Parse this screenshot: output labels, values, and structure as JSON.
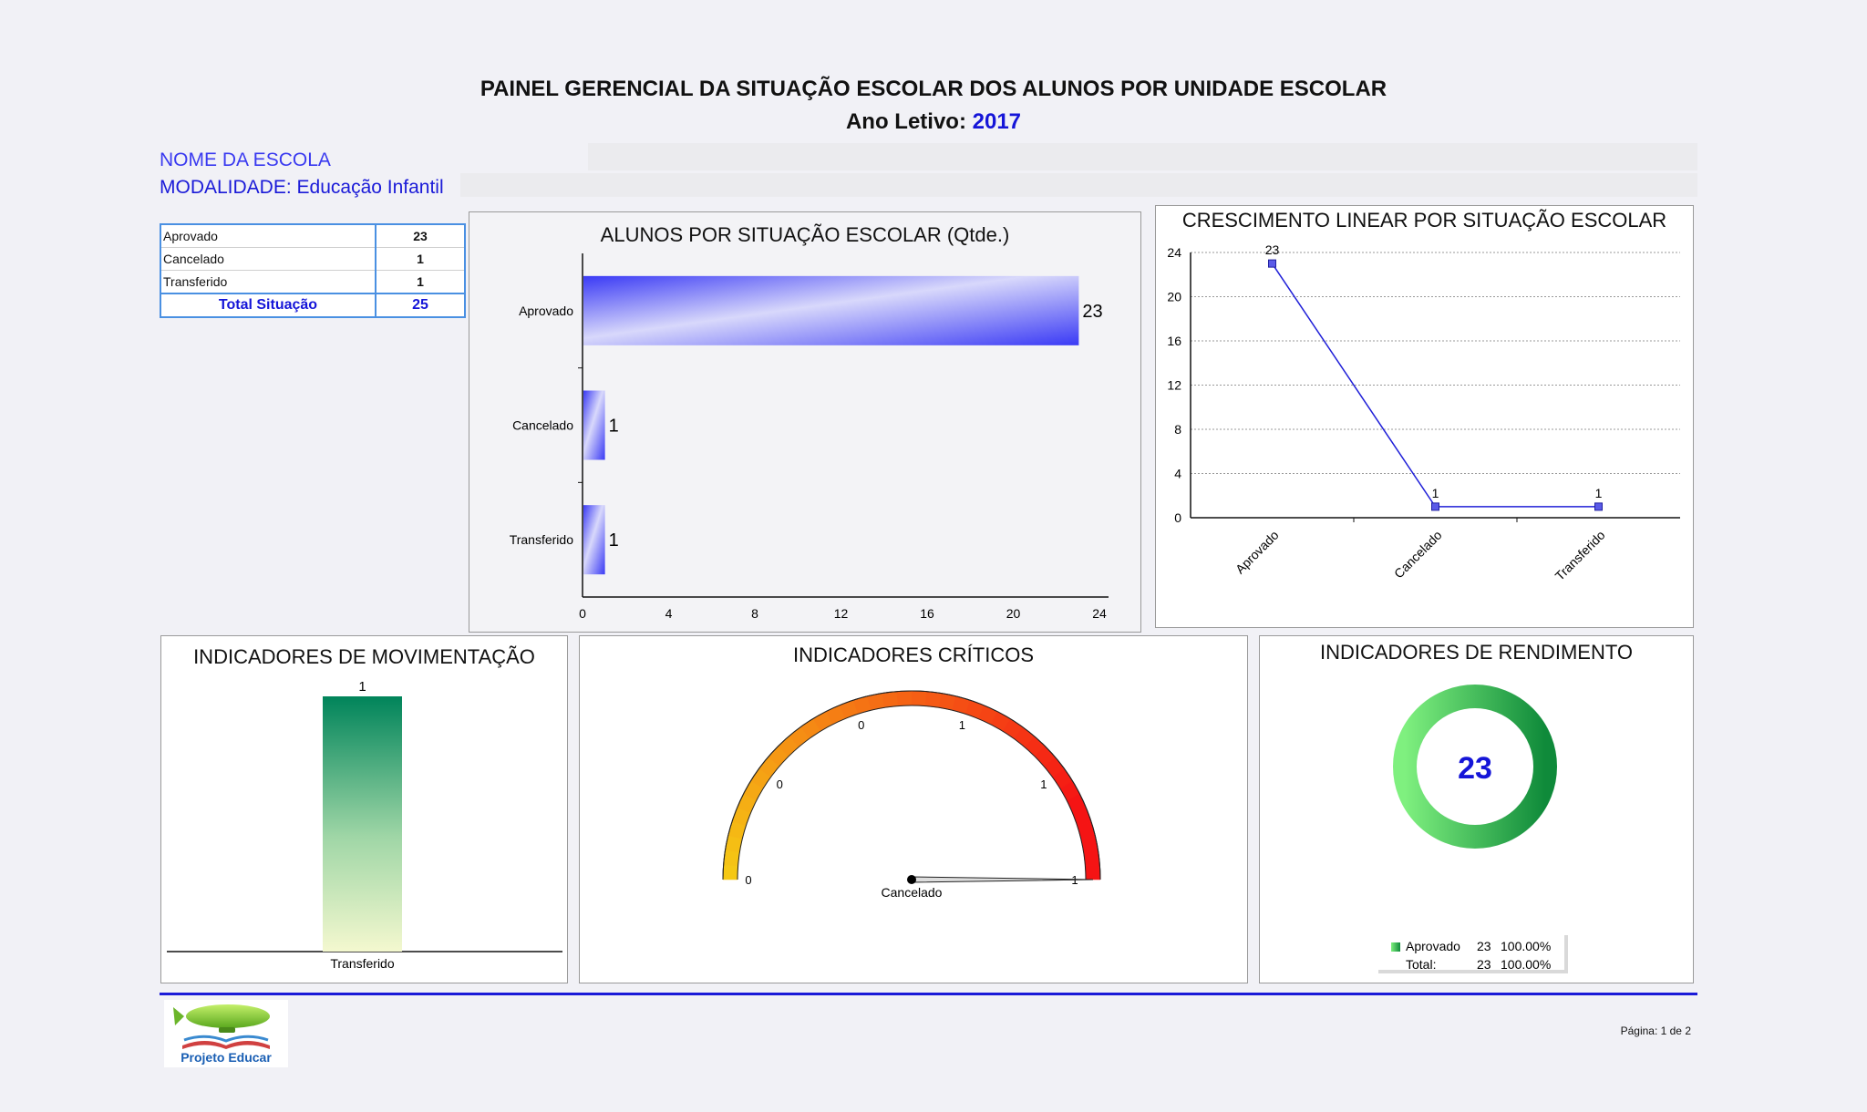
{
  "header": {
    "title": "PAINEL GERENCIAL DA SITUAÇÃO ESCOLAR DOS ALUNOS POR UNIDADE ESCOLAR",
    "year_label": "Ano Letivo:",
    "year": "2017"
  },
  "school": {
    "name_label": "NOME DA ESCOLA",
    "modality": "MODALIDADE: Educação Infantil"
  },
  "summary_table": {
    "rows": [
      {
        "label": "Aprovado",
        "value": "23"
      },
      {
        "label": "Cancelado",
        "value": "1"
      },
      {
        "label": "Transferido",
        "value": "1"
      }
    ],
    "total_label": "Total Situação",
    "total_value": "25"
  },
  "colors": {
    "accent_blue": "#1515d8",
    "bar_blue": "#3a3af5",
    "green": "#00845a",
    "divider": "#1a1ad8"
  },
  "chart_data": [
    {
      "type": "bar",
      "orientation": "horizontal",
      "title": "ALUNOS POR SITUAÇÃO ESCOLAR (Qtde.)",
      "categories": [
        "Aprovado",
        "Cancelado",
        "Transferido"
      ],
      "values": [
        23,
        1,
        1
      ],
      "xlim": [
        0,
        24
      ],
      "xticks": [
        "0",
        "4",
        "8",
        "12",
        "16",
        "20",
        "24"
      ]
    },
    {
      "type": "line",
      "title": "CRESCIMENTO LINEAR POR SITUAÇÃO ESCOLAR",
      "categories": [
        "Aprovado",
        "Cancelado",
        "Transferido"
      ],
      "values": [
        23,
        1,
        1
      ],
      "ylim": [
        0,
        24
      ],
      "yticks": [
        "0",
        "4",
        "8",
        "12",
        "16",
        "20",
        "24"
      ],
      "grid": true
    },
    {
      "type": "bar",
      "title": "INDICADORES DE MOVIMENTAÇÃO",
      "categories": [
        "Transferido"
      ],
      "values": [
        1
      ]
    },
    {
      "type": "gauge",
      "title": "INDICADORES CRÍTICOS",
      "label": "Cancelado",
      "value": 1,
      "range": [
        0,
        1
      ],
      "tick_labels": [
        "0",
        "0",
        "0",
        "1",
        "1",
        "1"
      ]
    },
    {
      "type": "pie",
      "title": "INDICADORES DE RENDIMENTO",
      "center_value": "23",
      "legend": [
        {
          "label": "Aprovado",
          "count": "23",
          "pct": "100.00%"
        },
        {
          "label": "Total:",
          "count": "23",
          "pct": "100.00%"
        }
      ]
    }
  ],
  "footer": {
    "logo_text": "Projeto Educar",
    "page": "Página: 1 de 2"
  }
}
